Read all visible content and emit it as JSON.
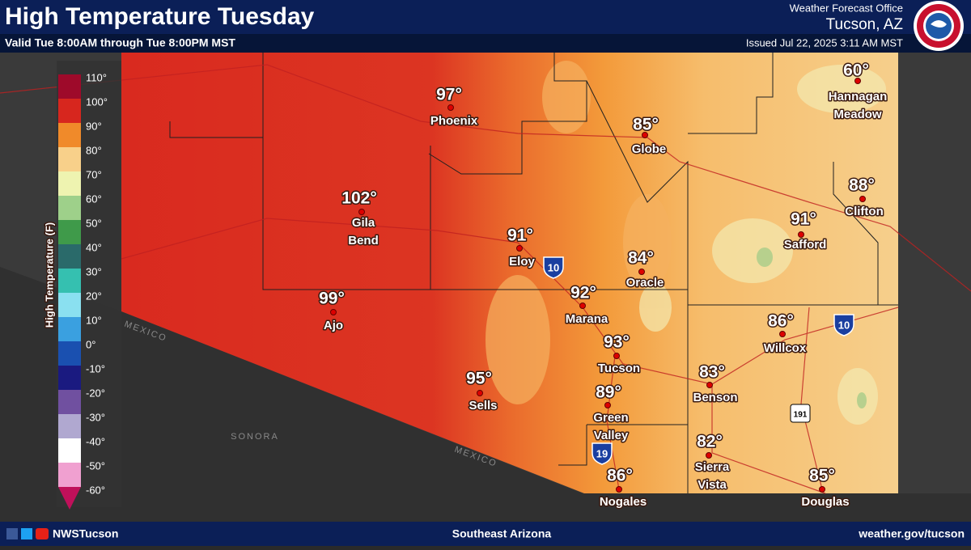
{
  "header": {
    "title": "High Temperature Tuesday",
    "subtitle": "Valid Tue 8:00AM through Tue 8:00PM MST",
    "office": "Weather Forecast Office",
    "location": "Tucson, AZ",
    "issued": "Issued Jul 22, 2025 3:11 AM MST"
  },
  "legend": {
    "title": "High Temperature (F)",
    "labels": [
      "110°",
      "100°",
      "90°",
      "80°",
      "70°",
      "60°",
      "50°",
      "40°",
      "30°",
      "20°",
      "10°",
      "0°",
      "-10°",
      "-20°",
      "-30°",
      "-40°",
      "-50°",
      "-60°"
    ],
    "colors": [
      "#9e0a2a",
      "#d7261e",
      "#f08a2a",
      "#f8d08a",
      "#eef3b0",
      "#9ed08a",
      "#3f9a4a",
      "#2a6a6a",
      "#35c0b0",
      "#8ae0f0",
      "#3aa0e0",
      "#1a50b0",
      "#1a1a80",
      "#7050a0",
      "#b0a8d0",
      "#ffffff",
      "#f0a0d0",
      "#c0105a"
    ]
  },
  "cities": [
    {
      "name": [
        "Phoenix"
      ],
      "temp": "97°"
    },
    {
      "name": [
        "Globe"
      ],
      "temp": "85°"
    },
    {
      "name": [
        "Hannagan",
        "Meadow"
      ],
      "temp": "60°"
    },
    {
      "name": [
        "Gila",
        "Bend"
      ],
      "temp": "102°"
    },
    {
      "name": [
        "Clifton"
      ],
      "temp": "88°"
    },
    {
      "name": [
        "Safford"
      ],
      "temp": "91°"
    },
    {
      "name": [
        "Eloy"
      ],
      "temp": "91°"
    },
    {
      "name": [
        "Oracle"
      ],
      "temp": "84°"
    },
    {
      "name": [
        "Marana"
      ],
      "temp": "92°"
    },
    {
      "name": [
        "Ajo"
      ],
      "temp": "99°"
    },
    {
      "name": [
        "Willcox"
      ],
      "temp": "86°"
    },
    {
      "name": [
        "Tucson"
      ],
      "temp": "93°"
    },
    {
      "name": [
        "Benson"
      ],
      "temp": "83°"
    },
    {
      "name": [
        "Sells"
      ],
      "temp": "95°"
    },
    {
      "name": [
        "Green",
        "Valley"
      ],
      "temp": "89°"
    },
    {
      "name": [
        "Sierra",
        "Vista"
      ],
      "temp": "82°"
    },
    {
      "name": [
        "Nogales"
      ],
      "temp": "86°"
    },
    {
      "name": [
        "Douglas"
      ],
      "temp": "85°"
    }
  ],
  "map_labels": [
    "MEXICO",
    "MEXICO",
    "SONORA"
  ],
  "shields": [
    "10",
    "10",
    "19",
    "191"
  ],
  "footer": {
    "social": "NWSTucson",
    "region": "Southeast Arizona",
    "url": "weather.gov/tucson"
  }
}
